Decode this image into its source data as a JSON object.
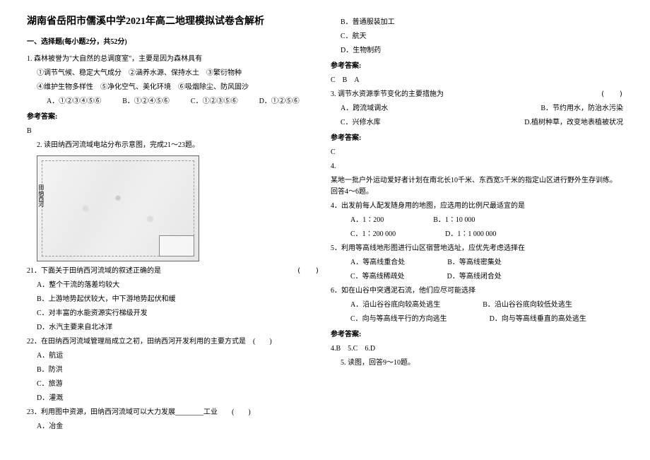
{
  "title": "湖南省岳阳市儒溪中学2021年高二地理模拟试卷含解析",
  "section1": "一、选择题(每小题2分，共52分)",
  "q1": {
    "stem": "1. 森林被誉为\"大自然的总调度室\"，主要是因为森林具有",
    "conds": "①调节气候、稳定大气成分　②涵养水源、保持水土　③繁衍物种",
    "conds2": "④维护生物多样性　⑤净化空气、美化环境　⑥吸烟除尘、防风固沙",
    "opts": {
      "a": "A．①②③④⑤⑥",
      "b": "B．①②④⑤⑥",
      "c": "C．①②③⑤⑥",
      "d": "D．①②⑤⑥"
    }
  },
  "refans": "参考答案:",
  "q1_ans": "B",
  "q2_intro": "2. 读田纳西河流域电站分布示意图，完成21～23题。",
  "q21": {
    "stem": "21．下面关于田纳西河流域的叙述正确的是",
    "a": "A．整个干流的落差均较大",
    "b": "B．上游地势起伏较大，中下游地势起伏和缓",
    "c": "C．对丰富的水能资源实行梯级开发",
    "d": "D．水汽主要来自北冰洋"
  },
  "q22": {
    "stem": "22．在田纳西河流域管理局成立之初，田纳西河开发利用的主要方式是　(　　)",
    "a": "A．航运",
    "b": "B．防洪",
    "c": "C．旅游",
    "d": "D．灌溉"
  },
  "q23": {
    "stem": "23．利用图中资源，田纳西河流域可以大力发展________工业　　(　　)",
    "a": "A．冶金"
  },
  "r_opts": {
    "b": "B．普通服装加工",
    "c": "C．航天",
    "d": "D．生物制药"
  },
  "q2_ans": "C　B　A",
  "q3": {
    "stem": "3. 调节水资源季节变化的主要措施为",
    "paren": "(　　)",
    "a": "A．跨流域调水",
    "b": "B．节约用水，防治水污染",
    "c": "C．兴修水库",
    "d": "D.植树种草，改变地表植被状况"
  },
  "q3_ans": "C",
  "q4_head": "4.",
  "q4_intro": "某地一批户外运动爱好者计划在南北长10千米、东西宽5千米的指定山区进行野外生存训练。回答4～6题。",
  "q4": {
    "stem": "4．出发前每人配发随身用的地图，应选用的比例尺最适宜的是",
    "a": "A．1∶200",
    "b": "B．1∶10 000",
    "c": "C．1∶200 000",
    "d": "D．1∶1 000 000"
  },
  "q5": {
    "stem": "5．利用等高线地形图进行山区宿营地选址，应优先考虑选择在",
    "a": "A．等高线重合处",
    "b": "B．等高线密集处",
    "c": "C．等高线稀疏处",
    "d": "D．等高线闭合处"
  },
  "q6": {
    "stem": "6．如在山谷中突遇泥石流，他们应尽可能选择",
    "a": "A．沿山谷谷底向较高处逃生",
    "b": "B．沿山谷谷底向较低处逃生",
    "c": "C．向与等高线平行的方向逃生",
    "d": "D．向与等高线垂直的高处逃生"
  },
  "q456_ans": "4.B　5.C　6.D",
  "q5_tail": "5. 读图，回答9～10题。",
  "paren_empty": "(　　)"
}
